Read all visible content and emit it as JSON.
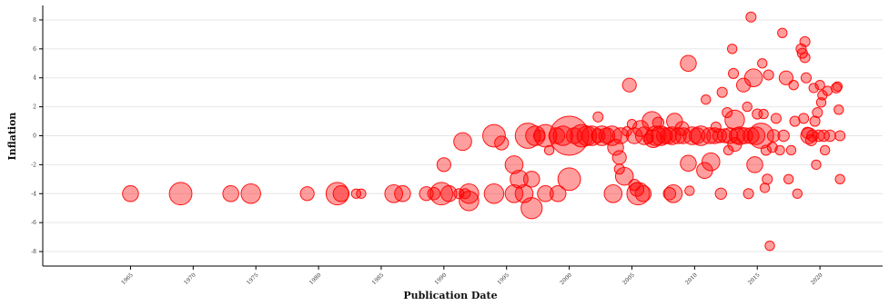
{
  "chart_data": {
    "type": "scatter",
    "title": "",
    "xlabel": "Publication Date",
    "ylabel": "Inflation",
    "xlim": [
      1958,
      2025
    ],
    "ylim": [
      -9,
      9
    ],
    "x_ticks": [
      1965,
      1970,
      1975,
      1980,
      1985,
      1990,
      1995,
      2000,
      2005,
      2010,
      2015,
      2020
    ],
    "x_tick_labels": [
      "1965",
      "1970",
      "1975",
      "1980",
      "1985",
      "1990",
      "1995",
      "2000",
      "2005",
      "2010",
      "2015",
      "2020"
    ],
    "y_ticks": [
      -8,
      -6,
      -4,
      -2,
      0,
      2,
      4,
      6,
      8
    ],
    "y_tick_labels": [
      "-8",
      "-6",
      "-4",
      "-2",
      "0",
      "2",
      "4",
      "6",
      "8"
    ],
    "grid": true,
    "marker_color": "#ff0000",
    "points": [
      {
        "x": 1965.0,
        "y": -4.0,
        "s": 2
      },
      {
        "x": 1969.0,
        "y": -4.0,
        "s": 4
      },
      {
        "x": 1973.0,
        "y": -4.0,
        "s": 2
      },
      {
        "x": 1974.6,
        "y": -4.0,
        "s": 3
      },
      {
        "x": 1979.1,
        "y": -4.0,
        "s": 1.5
      },
      {
        "x": 1981.5,
        "y": -4.0,
        "s": 4
      },
      {
        "x": 1981.8,
        "y": -4.0,
        "s": 2
      },
      {
        "x": 1983.0,
        "y": -4.0,
        "s": 0.7
      },
      {
        "x": 1983.4,
        "y": -4.0,
        "s": 0.7
      },
      {
        "x": 1986.0,
        "y": -4.0,
        "s": 2.5
      },
      {
        "x": 1986.7,
        "y": -4.0,
        "s": 2
      },
      {
        "x": 1988.6,
        "y": -4.0,
        "s": 1.5
      },
      {
        "x": 1989.2,
        "y": -4.0,
        "s": 1.2
      },
      {
        "x": 1989.8,
        "y": -4.0,
        "s": 4
      },
      {
        "x": 1990.4,
        "y": -4.0,
        "s": 2
      },
      {
        "x": 1990.0,
        "y": -2.0,
        "s": 1.5
      },
      {
        "x": 1991.2,
        "y": -4.0,
        "s": 0.8
      },
      {
        "x": 1991.7,
        "y": -4.0,
        "s": 0.8
      },
      {
        "x": 1992.0,
        "y": -4.5,
        "s": 3
      },
      {
        "x": 1992.0,
        "y": -4.0,
        "s": 3
      },
      {
        "x": 1991.5,
        "y": -0.4,
        "s": 2.5
      },
      {
        "x": 1994.0,
        "y": -4.0,
        "s": 3
      },
      {
        "x": 1994.0,
        "y": 0.0,
        "s": 4
      },
      {
        "x": 1994.6,
        "y": -0.5,
        "s": 1.5
      },
      {
        "x": 1995.6,
        "y": -4.0,
        "s": 2.5
      },
      {
        "x": 1995.6,
        "y": -2.0,
        "s": 2.5
      },
      {
        "x": 1996.0,
        "y": -3.0,
        "s": 2.5
      },
      {
        "x": 1996.4,
        "y": -4.0,
        "s": 2.5
      },
      {
        "x": 1996.7,
        "y": 0.0,
        "s": 5
      },
      {
        "x": 1997.0,
        "y": -3.0,
        "s": 2
      },
      {
        "x": 1997.0,
        "y": -5.0,
        "s": 3.5
      },
      {
        "x": 1997.3,
        "y": 0.0,
        "s": 3
      },
      {
        "x": 1997.6,
        "y": 0.0,
        "s": 1
      },
      {
        "x": 1998.1,
        "y": 0.0,
        "s": 4
      },
      {
        "x": 1998.1,
        "y": -4.0,
        "s": 2
      },
      {
        "x": 1998.4,
        "y": -1.0,
        "s": 0.7
      },
      {
        "x": 1999.1,
        "y": -4.0,
        "s": 2
      },
      {
        "x": 1999.0,
        "y": 0.0,
        "s": 2
      },
      {
        "x": 1999.5,
        "y": 0.0,
        "s": 3
      },
      {
        "x": 2000.0,
        "y": 0.0,
        "s": 12
      },
      {
        "x": 2000.0,
        "y": -3.0,
        "s": 4
      },
      {
        "x": 2000.4,
        "y": 0.0,
        "s": 2
      },
      {
        "x": 2001.0,
        "y": 0.0,
        "s": 4
      },
      {
        "x": 2001.4,
        "y": 0.0,
        "s": 3
      },
      {
        "x": 2001.8,
        "y": 0.0,
        "s": 3
      },
      {
        "x": 2002.3,
        "y": 0.0,
        "s": 1.5
      },
      {
        "x": 2002.3,
        "y": 1.3,
        "s": 0.8
      },
      {
        "x": 2002.6,
        "y": 0.0,
        "s": 3
      },
      {
        "x": 2003.0,
        "y": 0.0,
        "s": 2
      },
      {
        "x": 2003.4,
        "y": 0.0,
        "s": 3
      },
      {
        "x": 2003.5,
        "y": -4.0,
        "s": 2.5
      },
      {
        "x": 2003.7,
        "y": -0.8,
        "s": 2
      },
      {
        "x": 2004.0,
        "y": -1.5,
        "s": 1.5
      },
      {
        "x": 2004.0,
        "y": -2.3,
        "s": 0.8
      },
      {
        "x": 2004.1,
        "y": 0.0,
        "s": 2
      },
      {
        "x": 2004.4,
        "y": -2.8,
        "s": 2.5
      },
      {
        "x": 2004.6,
        "y": 0.3,
        "s": 0.7
      },
      {
        "x": 2004.8,
        "y": 3.5,
        "s": 1.5
      },
      {
        "x": 2005.0,
        "y": 0.8,
        "s": 0.7
      },
      {
        "x": 2005.2,
        "y": 0.0,
        "s": 2
      },
      {
        "x": 2005.2,
        "y": -3.4,
        "s": 1
      },
      {
        "x": 2005.4,
        "y": -3.7,
        "s": 1.5
      },
      {
        "x": 2005.5,
        "y": -4.0,
        "s": 4
      },
      {
        "x": 2005.7,
        "y": 0.5,
        "s": 2
      },
      {
        "x": 2005.9,
        "y": -4.0,
        "s": 2
      },
      {
        "x": 2006.0,
        "y": 0.0,
        "s": 2.5
      },
      {
        "x": 2006.3,
        "y": -0.2,
        "s": 0.8
      },
      {
        "x": 2006.6,
        "y": 1.0,
        "s": 3
      },
      {
        "x": 2006.7,
        "y": -0.2,
        "s": 2.5
      },
      {
        "x": 2006.9,
        "y": 0.0,
        "s": 3
      },
      {
        "x": 2007.1,
        "y": 0.9,
        "s": 1
      },
      {
        "x": 2007.3,
        "y": 0.0,
        "s": 3
      },
      {
        "x": 2007.6,
        "y": 0.0,
        "s": 2
      },
      {
        "x": 2007.9,
        "y": 0.0,
        "s": 2
      },
      {
        "x": 2008.0,
        "y": -4.0,
        "s": 1.2
      },
      {
        "x": 2008.2,
        "y": 0.0,
        "s": 2.5
      },
      {
        "x": 2008.3,
        "y": -4.0,
        "s": 2.5
      },
      {
        "x": 2008.4,
        "y": 1.0,
        "s": 2
      },
      {
        "x": 2008.7,
        "y": 0.0,
        "s": 2
      },
      {
        "x": 2009.0,
        "y": 0.5,
        "s": 1.5
      },
      {
        "x": 2009.1,
        "y": 0.0,
        "s": 2
      },
      {
        "x": 2009.5,
        "y": 5.0,
        "s": 2
      },
      {
        "x": 2009.5,
        "y": -1.9,
        "s": 2
      },
      {
        "x": 2009.6,
        "y": -3.8,
        "s": 0.7
      },
      {
        "x": 2009.8,
        "y": 0.0,
        "s": 2.5
      },
      {
        "x": 2010.2,
        "y": 0.0,
        "s": 2
      },
      {
        "x": 2010.5,
        "y": 0.0,
        "s": 3
      },
      {
        "x": 2010.8,
        "y": -2.4,
        "s": 2
      },
      {
        "x": 2010.9,
        "y": 2.5,
        "s": 0.7
      },
      {
        "x": 2011.2,
        "y": 0.0,
        "s": 2
      },
      {
        "x": 2011.3,
        "y": -1.8,
        "s": 2.5
      },
      {
        "x": 2011.6,
        "y": 0.0,
        "s": 2
      },
      {
        "x": 2011.7,
        "y": 0.6,
        "s": 0.8
      },
      {
        "x": 2012.0,
        "y": 0.0,
        "s": 1.5
      },
      {
        "x": 2012.1,
        "y": -4.0,
        "s": 1
      },
      {
        "x": 2012.2,
        "y": 3.0,
        "s": 0.8
      },
      {
        "x": 2012.4,
        "y": 0.0,
        "s": 1.5
      },
      {
        "x": 2012.6,
        "y": 1.6,
        "s": 0.8
      },
      {
        "x": 2012.7,
        "y": -1.0,
        "s": 0.7
      },
      {
        "x": 2012.8,
        "y": 0.0,
        "s": 2
      },
      {
        "x": 2013.0,
        "y": 6.0,
        "s": 0.7
      },
      {
        "x": 2013.1,
        "y": 4.3,
        "s": 0.8
      },
      {
        "x": 2013.2,
        "y": 1.1,
        "s": 3
      },
      {
        "x": 2013.2,
        "y": -0.6,
        "s": 1.5
      },
      {
        "x": 2013.4,
        "y": 0.0,
        "s": 2
      },
      {
        "x": 2013.6,
        "y": 0.0,
        "s": 2.5
      },
      {
        "x": 2013.9,
        "y": 3.5,
        "s": 1.5
      },
      {
        "x": 2014.0,
        "y": 0.0,
        "s": 2
      },
      {
        "x": 2014.2,
        "y": 2.0,
        "s": 0.7
      },
      {
        "x": 2014.3,
        "y": -4.0,
        "s": 0.8
      },
      {
        "x": 2014.5,
        "y": 8.2,
        "s": 0.8
      },
      {
        "x": 2014.5,
        "y": 0.0,
        "s": 2
      },
      {
        "x": 2014.7,
        "y": 4.0,
        "s": 2.5
      },
      {
        "x": 2014.8,
        "y": -2.0,
        "s": 2
      },
      {
        "x": 2014.9,
        "y": 0.0,
        "s": 2.5
      },
      {
        "x": 2015.0,
        "y": 1.5,
        "s": 0.8
      },
      {
        "x": 2015.3,
        "y": 0.0,
        "s": 5
      },
      {
        "x": 2015.4,
        "y": 5.0,
        "s": 0.7
      },
      {
        "x": 2015.5,
        "y": 1.5,
        "s": 0.7
      },
      {
        "x": 2015.6,
        "y": -3.6,
        "s": 0.7
      },
      {
        "x": 2015.7,
        "y": -1.0,
        "s": 0.8
      },
      {
        "x": 2015.8,
        "y": -3.0,
        "s": 0.8
      },
      {
        "x": 2015.9,
        "y": 4.2,
        "s": 0.8
      },
      {
        "x": 2016.0,
        "y": -7.6,
        "s": 0.7
      },
      {
        "x": 2016.2,
        "y": -0.8,
        "s": 0.8
      },
      {
        "x": 2016.3,
        "y": 0.0,
        "s": 1.2
      },
      {
        "x": 2016.5,
        "y": 1.2,
        "s": 0.8
      },
      {
        "x": 2016.8,
        "y": -1.0,
        "s": 0.7
      },
      {
        "x": 2017.0,
        "y": 7.1,
        "s": 0.7
      },
      {
        "x": 2017.1,
        "y": 0.0,
        "s": 1
      },
      {
        "x": 2017.3,
        "y": 4.0,
        "s": 1.5
      },
      {
        "x": 2017.5,
        "y": -3.0,
        "s": 0.7
      },
      {
        "x": 2017.7,
        "y": -1.0,
        "s": 0.7
      },
      {
        "x": 2017.9,
        "y": 3.5,
        "s": 0.7
      },
      {
        "x": 2018.0,
        "y": 1.0,
        "s": 0.8
      },
      {
        "x": 2018.2,
        "y": -4.0,
        "s": 0.7
      },
      {
        "x": 2018.5,
        "y": 6.0,
        "s": 0.8
      },
      {
        "x": 2018.6,
        "y": 5.7,
        "s": 0.8
      },
      {
        "x": 2018.7,
        "y": 1.2,
        "s": 0.8
      },
      {
        "x": 2018.8,
        "y": 6.5,
        "s": 0.8
      },
      {
        "x": 2018.8,
        "y": 5.4,
        "s": 0.8
      },
      {
        "x": 2018.9,
        "y": 4.0,
        "s": 0.8
      },
      {
        "x": 2019.0,
        "y": 0.2,
        "s": 1
      },
      {
        "x": 2019.1,
        "y": 0.0,
        "s": 2
      },
      {
        "x": 2019.3,
        "y": -0.3,
        "s": 1
      },
      {
        "x": 2019.4,
        "y": 0.0,
        "s": 1
      },
      {
        "x": 2019.5,
        "y": 3.3,
        "s": 0.7
      },
      {
        "x": 2019.6,
        "y": 1.0,
        "s": 0.8
      },
      {
        "x": 2019.7,
        "y": -2.0,
        "s": 0.7
      },
      {
        "x": 2019.8,
        "y": 1.6,
        "s": 0.8
      },
      {
        "x": 2019.9,
        "y": 0.0,
        "s": 1
      },
      {
        "x": 2020.0,
        "y": 3.5,
        "s": 0.7
      },
      {
        "x": 2020.1,
        "y": 2.3,
        "s": 0.7
      },
      {
        "x": 2020.2,
        "y": 2.8,
        "s": 0.7
      },
      {
        "x": 2020.3,
        "y": 0.0,
        "s": 1
      },
      {
        "x": 2020.4,
        "y": -1.0,
        "s": 0.7
      },
      {
        "x": 2020.6,
        "y": 3.1,
        "s": 0.7
      },
      {
        "x": 2020.8,
        "y": 0.0,
        "s": 1
      },
      {
        "x": 2021.3,
        "y": 3.3,
        "s": 0.8
      },
      {
        "x": 2021.4,
        "y": 3.4,
        "s": 0.7
      },
      {
        "x": 2021.5,
        "y": 1.8,
        "s": 0.7
      },
      {
        "x": 2021.6,
        "y": 0.0,
        "s": 0.8
      },
      {
        "x": 2021.6,
        "y": -3.0,
        "s": 0.7
      }
    ]
  }
}
